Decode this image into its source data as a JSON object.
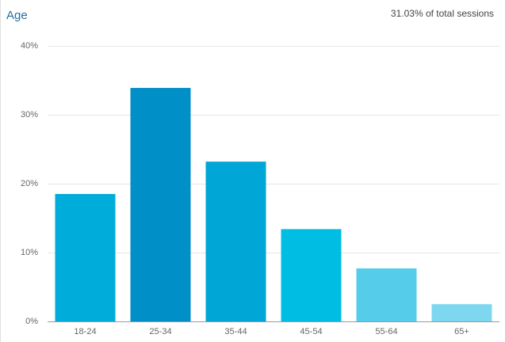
{
  "chart_data": {
    "type": "bar",
    "title": "Age",
    "subtitle": "31.03% of total sessions",
    "categories": [
      "18-24",
      "25-34",
      "35-44",
      "45-54",
      "55-64",
      "65+"
    ],
    "values": [
      18.5,
      33.9,
      23.2,
      13.4,
      7.7,
      2.5
    ],
    "colors": [
      "#00acd9",
      "#008fc7",
      "#00a7d6",
      "#00bde3",
      "#55cdea",
      "#7dd8ef"
    ],
    "ylim": [
      0,
      40
    ],
    "yticks": [
      {
        "value": 0,
        "label": "0%"
      },
      {
        "value": 10,
        "label": "10%"
      },
      {
        "value": 20,
        "label": "20%"
      },
      {
        "value": 30,
        "label": "30%"
      },
      {
        "value": 40,
        "label": "40%"
      }
    ],
    "grid": true
  }
}
